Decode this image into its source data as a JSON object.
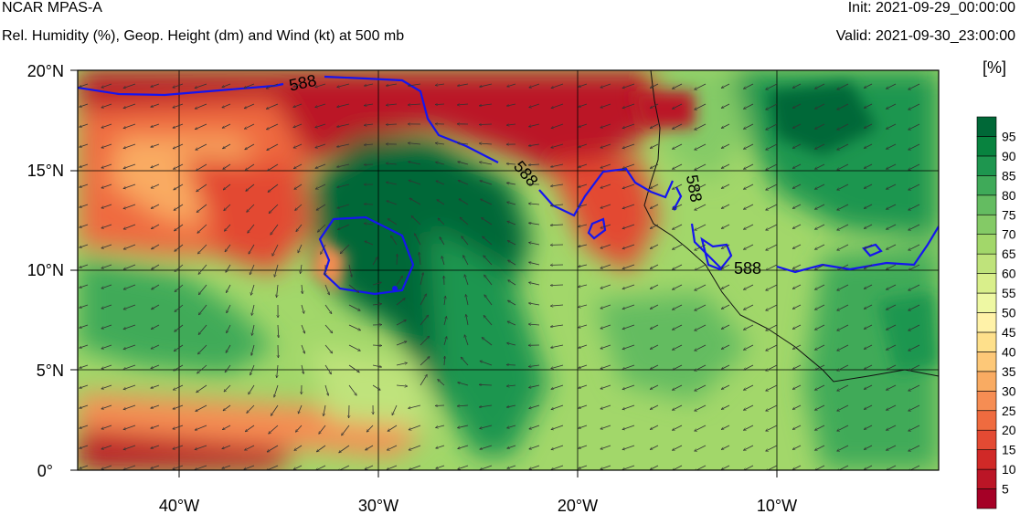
{
  "header": {
    "model": "NCAR MPAS-A",
    "field": "Rel. Humidity (%), Geop. Height (dm) and Wind (kt) at 500 mb",
    "init": "Init: 2021-09-29_00:00:00",
    "valid": "Valid: 2021-09-30_23:00:00"
  },
  "colorbar": {
    "unit": "[%]",
    "levels": [
      "5",
      "10",
      "15",
      "20",
      "25",
      "30",
      "35",
      "40",
      "45",
      "50",
      "55",
      "60",
      "65",
      "70",
      "75",
      "80",
      "85",
      "90",
      "95"
    ],
    "colors": [
      "#a50026",
      "#bb1526",
      "#d02927",
      "#e34a33",
      "#ef6b3f",
      "#f68d53",
      "#f9ab62",
      "#fdc878",
      "#fee08b",
      "#fff2a8",
      "#eef8a3",
      "#d9ef8b",
      "#bfe37b",
      "#a2d76a",
      "#84ca66",
      "#64bc61",
      "#3faa59",
      "#1e964f",
      "#08833f",
      "#006837"
    ]
  },
  "axes": {
    "lon_labels": [
      "40°W",
      "30°W",
      "20°W",
      "10°W"
    ],
    "lat_labels": [
      "20°N",
      "15°N",
      "10°N",
      "5°N",
      "0°"
    ]
  },
  "contour_labels": [
    "588",
    "588",
    "588",
    "588"
  ],
  "map_extent": {
    "lon_min": -45,
    "lon_max": -2,
    "lat_min": 0,
    "lat_max": 20
  }
}
